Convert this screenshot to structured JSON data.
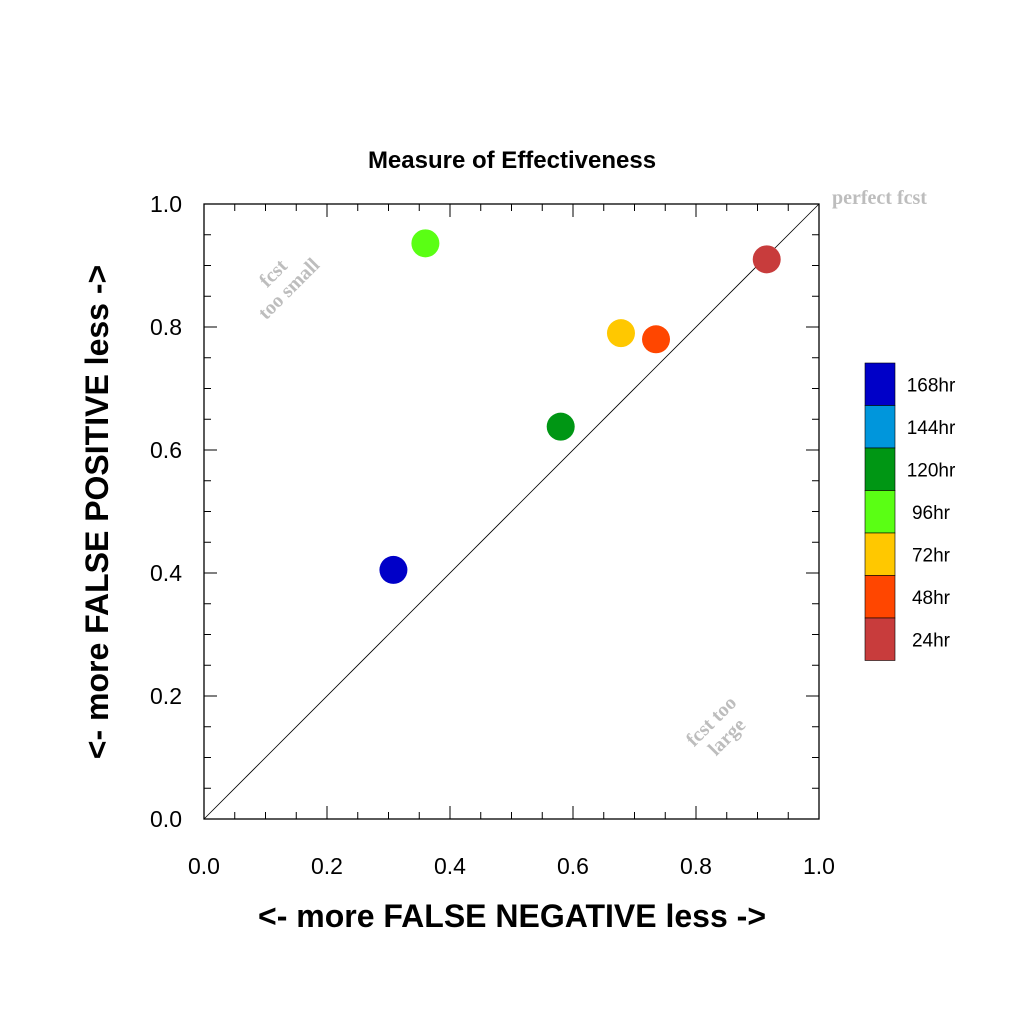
{
  "chart_data": {
    "type": "scatter",
    "title": "Measure of Effectiveness",
    "xlabel": "<- more   FALSE NEGATIVE   less ->",
    "ylabel": "<- more   FALSE POSITIVE   less ->",
    "xlim": [
      0,
      1
    ],
    "ylim": [
      0,
      1
    ],
    "xticks": [
      "0.0",
      "0.2",
      "0.4",
      "0.6",
      "0.8",
      "1.0"
    ],
    "yticks": [
      "0.0",
      "0.2",
      "0.4",
      "0.6",
      "0.8",
      "1.0"
    ],
    "grid": false,
    "diagonal_line": true,
    "annotations": {
      "perfect": "perfect fcst",
      "small_line1": "fcst",
      "small_line2": "too small",
      "large_line1": "fcst too",
      "large_line2": "large"
    },
    "points": [
      {
        "label": "168hr",
        "x": 0.308,
        "y": 0.405,
        "color": "#0000c8"
      },
      {
        "label": "144hr",
        "x": null,
        "y": null,
        "color": "#0096dc"
      },
      {
        "label": "120hr",
        "x": 0.58,
        "y": 0.638,
        "color": "#009614"
      },
      {
        "label": "96hr",
        "x": 0.36,
        "y": 0.936,
        "color": "#5aff14"
      },
      {
        "label": "72hr",
        "x": 0.678,
        "y": 0.79,
        "color": "#ffc800"
      },
      {
        "label": "48hr",
        "x": 0.735,
        "y": 0.78,
        "color": "#ff4600"
      },
      {
        "label": "24hr",
        "x": 0.915,
        "y": 0.91,
        "color": "#c83c3c"
      }
    ],
    "legend": {
      "placement": "right",
      "entries": [
        "168hr",
        "144hr",
        "120hr",
        "96hr",
        "72hr",
        "48hr",
        "24hr"
      ]
    }
  }
}
